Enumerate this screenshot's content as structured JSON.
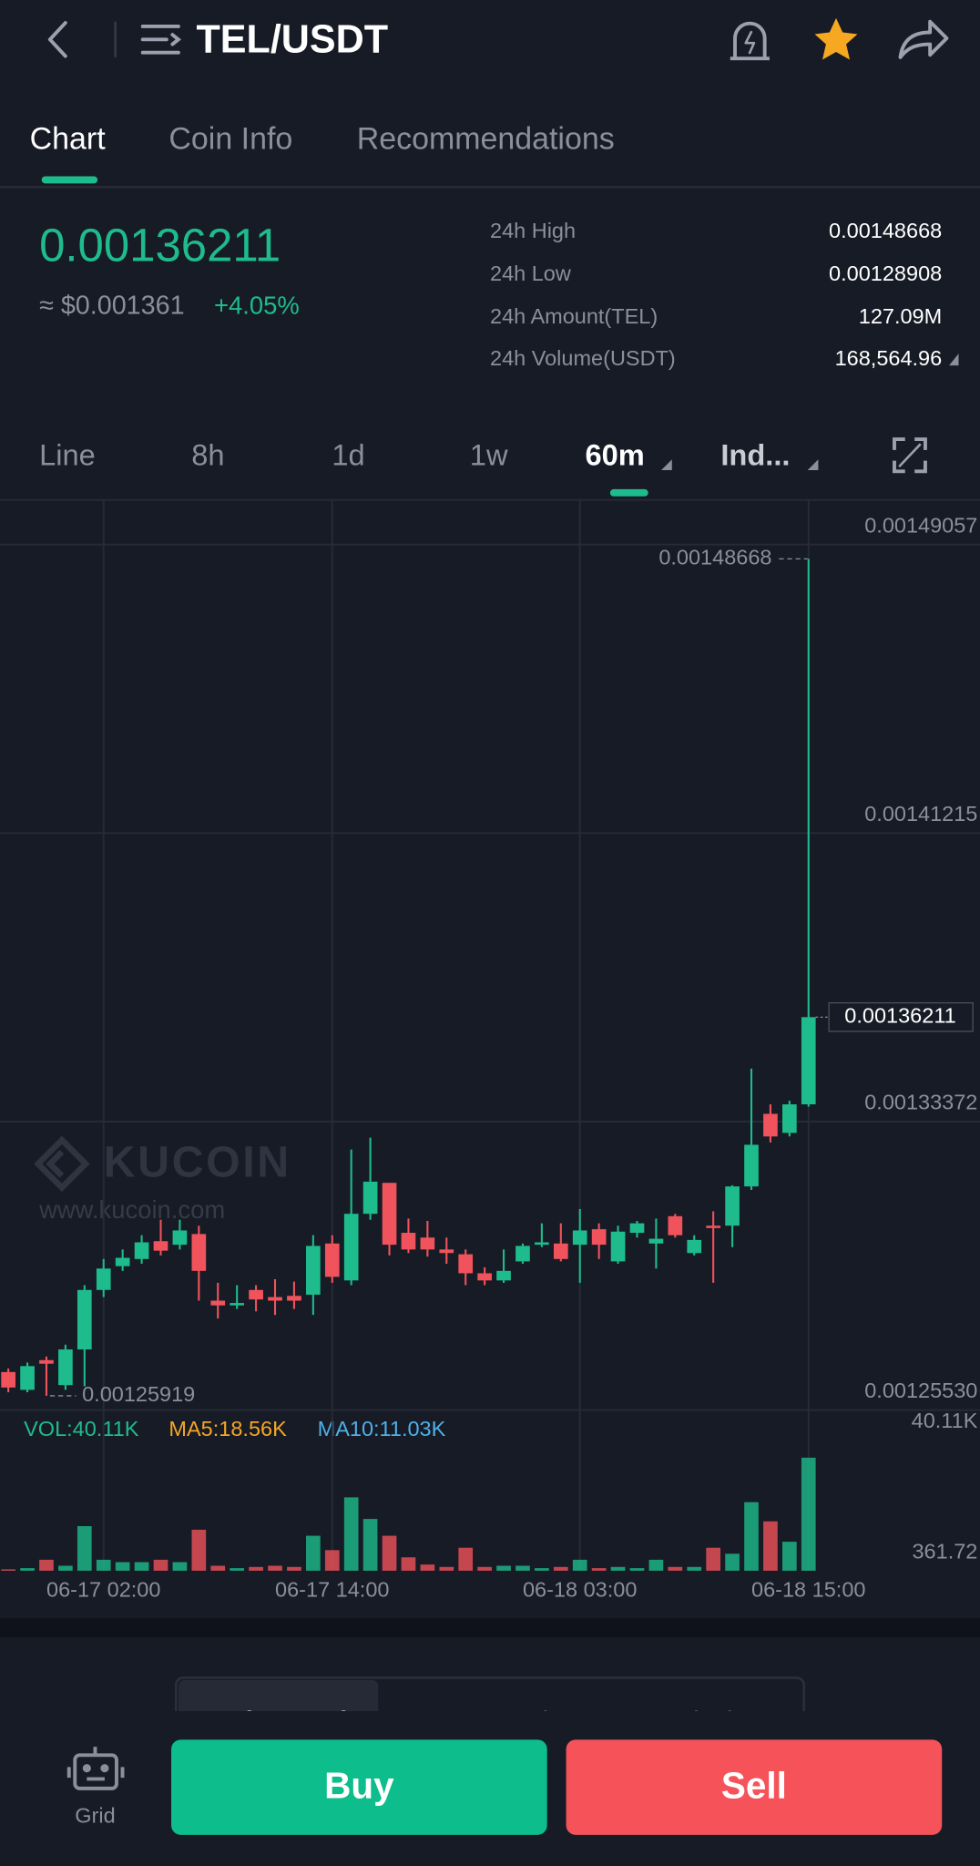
{
  "header": {
    "title": "TEL/USDT"
  },
  "tabs": [
    "Chart",
    "Coin Info",
    "Recommendations"
  ],
  "ticker": {
    "last": "0.00136211",
    "fiat": "≈ $0.001361",
    "change": "+4.05%"
  },
  "stats": [
    {
      "label": "24h High",
      "value": "0.00148668"
    },
    {
      "label": "24h Low",
      "value": "0.00128908"
    },
    {
      "label": "24h Amount(TEL)",
      "value": "127.09M"
    },
    {
      "label": "24h Volume(USDT)",
      "value": "168,564.96"
    }
  ],
  "intervals": [
    "Line",
    "8h",
    "1d",
    "1w",
    "60m",
    "Ind..."
  ],
  "watermark": {
    "brand": "KUCOIN",
    "url": "www.kucoin.com"
  },
  "chart_data": {
    "type": "candlestick",
    "categories": [
      null,
      null,
      null,
      null,
      null,
      "06-17 02:00",
      null,
      null,
      null,
      null,
      null,
      null,
      null,
      null,
      null,
      null,
      null,
      "06-17 14:00",
      null,
      null,
      null,
      null,
      null,
      null,
      null,
      null,
      null,
      null,
      null,
      null,
      "06-18 03:00",
      null,
      null,
      null,
      null,
      null,
      null,
      null,
      null,
      null,
      null,
      null,
      "06-18 15:00"
    ],
    "open": [
      0.00126565,
      0.0012608,
      0.00126888,
      0.00126209,
      0.00127179,
      0.00128796,
      0.00129443,
      0.00129637,
      0.00130122,
      0.00130025,
      0.00130316,
      0.00128505,
      0.00128376,
      0.00128796,
      0.00128602,
      0.00128635,
      0.00128667,
      0.00130058,
      0.00129055,
      0.00130866,
      0.00131707,
      0.00130349,
      0.00130219,
      0.00129896,
      0.00129766,
      0.00129249,
      0.00129055,
      0.00129572,
      0.00130025,
      0.00130058,
      0.00130025,
      0.00130446,
      0.00129572,
      0.00130349,
      0.00130058,
      0.00130801,
      0.00129799,
      0.00130543,
      0.00130543,
      0.0013161,
      0.00133583,
      0.00133065,
      0.00133841
    ],
    "high": [
      0.00126662,
      0.00126824,
      0.00126985,
      0.00127309,
      0.00128926,
      0.00129637,
      0.00129896,
      0.00130284,
      0.00130704,
      0.00130704,
      0.00130543,
      0.0012899,
      0.00128926,
      0.00128926,
      0.00129087,
      0.00129023,
      0.00130284,
      0.00130284,
      0.00132612,
      0.00132936,
      0.00131707,
      0.00130737,
      0.00130672,
      0.00130219,
      0.00129896,
      0.00129411,
      0.00129896,
      0.00130058,
      0.00130607,
      0.00130607,
      0.00130995,
      0.00130607,
      0.00130543,
      0.00130672,
      0.00130737,
      0.00130866,
      0.00130284,
      0.00130931,
      0.00131642,
      0.00134811,
      0.00133841,
      0.00133938,
      0.00148668
    ],
    "low": [
      0.00126015,
      0.00126015,
      0.00125919,
      0.0012608,
      0.00126177,
      0.00128602,
      0.00129314,
      0.00129508,
      0.00129734,
      0.00129896,
      0.00128505,
      0.0012802,
      0.00128279,
      0.00128214,
      0.00128117,
      0.00128279,
      0.00128117,
      0.0012899,
      0.00128926,
      0.00130704,
      0.00129734,
      0.00129799,
      0.00129702,
      0.00129508,
      0.00128926,
      0.00128926,
      0.0012899,
      0.00129508,
      0.0012996,
      0.00129572,
      0.0012899,
      0.00129637,
      0.00129508,
      0.00130219,
      0.00129378,
      0.00130219,
      0.00129734,
      0.0012899,
      0.0012996,
      0.00131513,
      0.00132806,
      0.00132968,
      0.00133777
    ],
    "close": [
      0.00126144,
      0.00126726,
      0.00126791,
      0.00127179,
      0.00128796,
      0.00129378,
      0.00129669,
      0.0013009,
      0.00129863,
      0.00130413,
      0.00129314,
      0.00128376,
      0.00128441,
      0.00128538,
      0.00128505,
      0.00128505,
      0.00129993,
      0.00129152,
      0.00130866,
      0.00131739,
      0.00130025,
      0.00129896,
      0.00129896,
      0.00129799,
      0.00129249,
      0.00129055,
      0.00129314,
      0.00129993,
      0.0013009,
      0.00129637,
      0.00130413,
      0.00130025,
      0.00130381,
      0.00130607,
      0.00130187,
      0.00130284,
      0.00130155,
      0.00130478,
      0.0013161,
      0.00132742,
      0.00132968,
      0.00133841,
      0.00136211
    ],
    "up_color": "#1ebc8c",
    "down_color": "#f0535b",
    "ylim": [
      0.0012553,
      0.0015027
    ],
    "yticks": [
      0.00149057,
      0.00141215,
      0.00133372,
      {
        "value": 0.0012553,
        "label": "0.00125530"
      }
    ],
    "grid": true,
    "volume": {
      "values": [
        844,
        1266,
        4220,
        2110,
        16036,
        4220,
        3376,
        3376,
        4220,
        3376,
        14770,
        2110,
        1266,
        1688,
        2110,
        1688,
        12660,
        7596,
        26164,
        18568,
        12660,
        5064,
        2532,
        1688,
        8440,
        1688,
        2110,
        2110,
        1266,
        1688,
        4220,
        1266,
        1688,
        1266,
        4220,
        1688,
        1688,
        8440,
        6330,
        24476,
        17724,
        10550,
        40110
      ],
      "ylim": [
        361.72,
        40110
      ],
      "yticks": [
        {
          "value": 40110,
          "label": "40.11K"
        },
        361.72
      ],
      "stats": [
        "VOL:40.11K",
        "MA5:18.56K",
        "MA10:11.03K"
      ]
    }
  },
  "bottom_tabs": [
    "Order Book",
    "Recent Trades",
    "Analysis"
  ],
  "footer": {
    "grid": "Grid",
    "buy": "Buy",
    "sell": "Sell"
  }
}
